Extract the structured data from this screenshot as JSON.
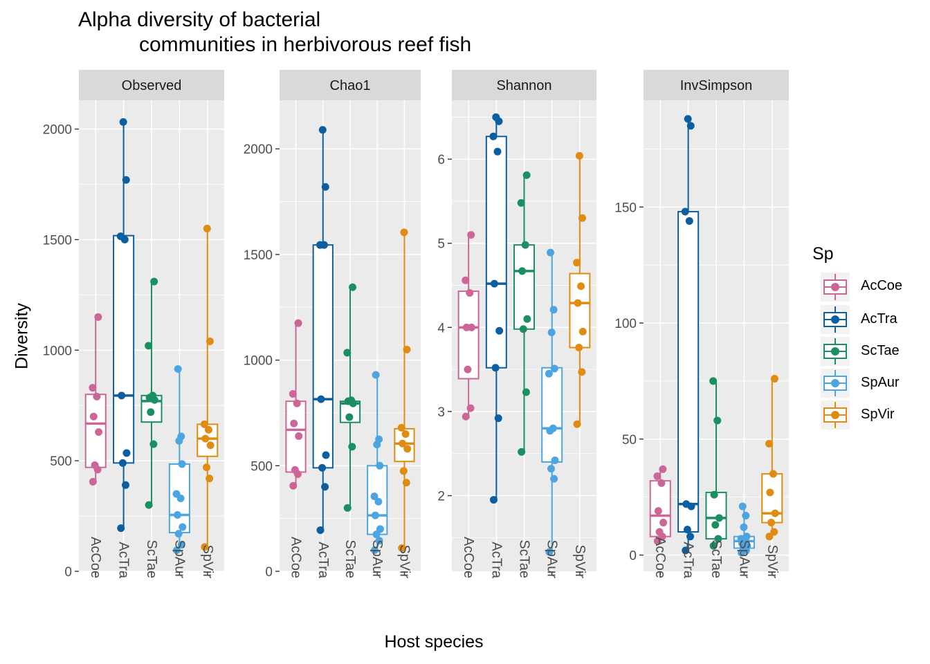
{
  "chart_data": {
    "type": "box",
    "title_lines": [
      "Alpha diversity of bacterial",
      "communities in herbivorous reef fish"
    ],
    "xlabel": "Host species",
    "ylabel": "Diversity",
    "categories": [
      "AcCoe",
      "AcTra",
      "ScTae",
      "SpAur",
      "SpVir"
    ],
    "legend": {
      "title": "Sp",
      "position": "right",
      "items": [
        {
          "label": "AcCoe",
          "color": "#CC6699"
        },
        {
          "label": "AcTra",
          "color": "#0B5EA0"
        },
        {
          "label": "ScTae",
          "color": "#1A8F62"
        },
        {
          "label": "SpAur",
          "color": "#4CA5E0"
        },
        {
          "label": "SpVir",
          "color": "#E08C12"
        }
      ]
    },
    "panels": [
      {
        "name": "Observed",
        "ylim": [
          0,
          2130
        ],
        "yticks": [
          0,
          500,
          1000,
          1500,
          2000
        ],
        "series": [
          {
            "name": "AcCoe",
            "box": {
              "min": 405,
              "q1": 470,
              "median": 668,
              "q3": 800,
              "max": 1150
            },
            "points": [
              405,
              460,
              480,
              630,
              700,
              790,
              830,
              1150
            ]
          },
          {
            "name": "AcTra",
            "box": {
              "min": 195,
              "q1": 490,
              "median": 795,
              "q3": 1518,
              "max": 2032
            },
            "points": [
              195,
              390,
              490,
              535,
              795,
              1500,
              1515,
              1770,
              2032
            ]
          },
          {
            "name": "ScTae",
            "box": {
              "min": 300,
              "q1": 675,
              "median": 770,
              "q3": 795,
              "max": 1310
            },
            "points": [
              300,
              575,
              720,
              775,
              785,
              795,
              1020,
              1310
            ]
          },
          {
            "name": "SpAur",
            "box": {
              "min": 95,
              "q1": 175,
              "median": 255,
              "q3": 485,
              "max": 915
            },
            "points": [
              95,
              120,
              170,
              200,
              255,
              330,
              350,
              485,
              590,
              610,
              915
            ]
          },
          {
            "name": "SpVir",
            "box": {
              "min": 110,
              "q1": 520,
              "median": 600,
              "q3": 665,
              "max": 1550
            },
            "points": [
              110,
              420,
              470,
              570,
              600,
              640,
              665,
              1040,
              1550
            ]
          }
        ]
      },
      {
        "name": "Chao1",
        "ylim": [
          0,
          2230
        ],
        "yticks": [
          0,
          500,
          1000,
          1500,
          2000
        ],
        "series": [
          {
            "name": "AcCoe",
            "box": {
              "min": 405,
              "q1": 470,
              "median": 670,
              "q3": 805,
              "max": 1175
            },
            "points": [
              405,
              460,
              480,
              640,
              700,
              795,
              840,
              1175
            ]
          },
          {
            "name": "AcTra",
            "box": {
              "min": 195,
              "q1": 490,
              "median": 815,
              "q3": 1545,
              "max": 2090
            },
            "points": [
              195,
              400,
              490,
              550,
              815,
              1545,
              1545,
              1820,
              2090
            ]
          },
          {
            "name": "ScTae",
            "box": {
              "min": 300,
              "q1": 705,
              "median": 795,
              "q3": 805,
              "max": 1345
            },
            "points": [
              300,
              590,
              730,
              795,
              805,
              810,
              1035,
              1345
            ]
          },
          {
            "name": "SpAur",
            "box": {
              "min": 100,
              "q1": 175,
              "median": 265,
              "q3": 500,
              "max": 930
            },
            "points": [
              100,
              145,
              175,
              200,
              265,
              330,
              355,
              500,
              600,
              625,
              930
            ]
          },
          {
            "name": "SpVir",
            "box": {
              "min": 110,
              "q1": 520,
              "median": 605,
              "q3": 675,
              "max": 1605
            },
            "points": [
              110,
              420,
              475,
              580,
              605,
              650,
              680,
              1050,
              1605
            ]
          }
        ]
      },
      {
        "name": "Shannon",
        "ylim": [
          1.1,
          6.7
        ],
        "yticks": [
          2,
          3,
          4,
          5,
          6
        ],
        "series": [
          {
            "name": "AcCoe",
            "box": {
              "min": 2.94,
              "q1": 3.39,
              "median": 4.0,
              "q3": 4.43,
              "max": 5.1
            },
            "points": [
              2.94,
              3.04,
              3.5,
              4.0,
              4.0,
              4.41,
              4.56,
              5.1
            ]
          },
          {
            "name": "AcTra",
            "box": {
              "min": 1.95,
              "q1": 3.52,
              "median": 4.52,
              "q3": 6.27,
              "max": 6.5
            },
            "points": [
              1.95,
              2.92,
              3.52,
              3.96,
              4.52,
              6.09,
              6.27,
              6.45,
              6.5
            ]
          },
          {
            "name": "ScTae",
            "box": {
              "min": 2.52,
              "q1": 3.98,
              "median": 4.67,
              "q3": 4.98,
              "max": 5.81
            },
            "points": [
              2.52,
              3.23,
              3.98,
              4.1,
              4.67,
              4.98,
              5.48,
              5.81
            ]
          },
          {
            "name": "SpAur",
            "box": {
              "min": 1.33,
              "q1": 2.4,
              "median": 2.8,
              "q3": 3.52,
              "max": 4.89
            },
            "points": [
              1.33,
              2.2,
              2.32,
              2.42,
              2.77,
              2.8,
              3.45,
              3.51,
              3.94,
              4.21,
              4.89
            ]
          },
          {
            "name": "SpVir",
            "box": {
              "min": 2.85,
              "q1": 3.76,
              "median": 4.29,
              "q3": 4.64,
              "max": 6.04
            },
            "points": [
              2.85,
              3.47,
              3.76,
              3.95,
              4.29,
              4.49,
              4.77,
              5.3,
              6.04
            ]
          }
        ]
      },
      {
        "name": "InvSimpson",
        "ylim": [
          -7,
          196
        ],
        "yticks": [
          0,
          50,
          100,
          150
        ],
        "series": [
          {
            "name": "AcCoe",
            "box": {
              "min": 6,
              "q1": 8,
              "median": 17,
              "q3": 32,
              "max": 37
            },
            "points": [
              6,
              8,
              10,
              14,
              19,
              31,
              34,
              37
            ]
          },
          {
            "name": "AcTra",
            "box": {
              "min": 2,
              "q1": 10,
              "median": 22,
              "q3": 148,
              "max": 188
            },
            "points": [
              2,
              8,
              11,
              21,
              22,
              144,
              148,
              185,
              188
            ]
          },
          {
            "name": "ScTae",
            "box": {
              "min": 4,
              "q1": 7,
              "median": 16,
              "q3": 27,
              "max": 75
            },
            "points": [
              4,
              7,
              13,
              16,
              26,
              58,
              75
            ]
          },
          {
            "name": "SpAur",
            "box": {
              "min": 1,
              "q1": 3,
              "median": 6,
              "q3": 8,
              "max": 21
            },
            "points": [
              1,
              2,
              3,
              4,
              5,
              6,
              7,
              8,
              12,
              17,
              21
            ]
          },
          {
            "name": "SpVir",
            "box": {
              "min": 8,
              "q1": 14,
              "median": 18,
              "q3": 35,
              "max": 76
            },
            "points": [
              8,
              10,
              14,
              18,
              27,
              35,
              48,
              76
            ]
          }
        ]
      }
    ]
  }
}
